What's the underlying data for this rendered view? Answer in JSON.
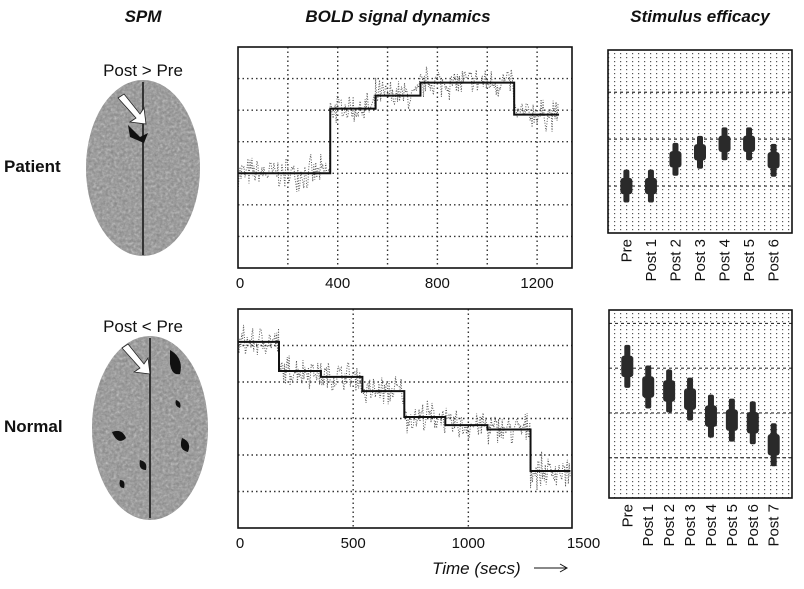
{
  "titles": {
    "spm": "SPM",
    "bold": "BOLD signal dynamics",
    "efficacy": "Stimulus efficacy"
  },
  "rows": [
    {
      "label": "Patient",
      "contrast": "Post > Pre"
    },
    {
      "label": "Normal",
      "contrast": "Post < Pre"
    }
  ],
  "xlabel": "Time (secs)",
  "colors": {
    "ink": "#111111",
    "grid": "#444444",
    "brain": "#8a8a8a",
    "bar": "#2a2a2a"
  },
  "chart_data": [
    {
      "id": "bold-patient",
      "type": "line",
      "title": "BOLD signal dynamics (Patient)",
      "xlabel": "Time (secs)",
      "ylabel": "",
      "xlim": [
        0,
        1340
      ],
      "ylim": [
        0,
        7
      ],
      "grid": true,
      "xticks": [
        0,
        400,
        800,
        1200
      ],
      "steps": [
        {
          "start": 0,
          "end": 370,
          "level": 3.0
        },
        {
          "start": 370,
          "end": 552,
          "level": 5.05
        },
        {
          "start": 552,
          "end": 732,
          "level": 5.46
        },
        {
          "start": 732,
          "end": 1108,
          "level": 5.87
        },
        {
          "start": 1108,
          "end": 1288,
          "level": 4.86
        }
      ]
    },
    {
      "id": "bold-normal",
      "type": "line",
      "title": "BOLD signal dynamics (Normal)",
      "xlabel": "Time (secs)",
      "ylabel": "",
      "xlim": [
        0,
        1450
      ],
      "ylim": [
        0,
        6
      ],
      "grid": true,
      "xticks": [
        0,
        500,
        1000,
        1500
      ],
      "steps": [
        {
          "start": 0,
          "end": 178,
          "level": 5.1
        },
        {
          "start": 178,
          "end": 360,
          "level": 4.3
        },
        {
          "start": 360,
          "end": 540,
          "level": 4.14
        },
        {
          "start": 540,
          "end": 722,
          "level": 3.75
        },
        {
          "start": 722,
          "end": 900,
          "level": 3.04
        },
        {
          "start": 900,
          "end": 1083,
          "level": 2.82
        },
        {
          "start": 1083,
          "end": 1270,
          "level": 2.7
        },
        {
          "start": 1270,
          "end": 1443,
          "level": 1.56
        }
      ]
    },
    {
      "id": "efficacy-patient",
      "type": "scatter",
      "title": "Stimulus efficacy (Patient)",
      "ylim": [
        0,
        3.9
      ],
      "grid": true,
      "categories": [
        "Pre",
        "Post 1",
        "Post 2",
        "Post 3",
        "Post 4",
        "Post 5",
        "Post 6"
      ],
      "values": [
        1.0,
        1.0,
        1.57,
        1.72,
        1.9,
        1.9,
        1.55
      ],
      "errors": [
        0.35,
        0.35,
        0.35,
        0.35,
        0.35,
        0.35,
        0.35
      ]
    },
    {
      "id": "efficacy-normal",
      "type": "scatter",
      "title": "Stimulus efficacy (Normal)",
      "ylim": [
        0.1,
        4.3
      ],
      "grid": true,
      "categories": [
        "Pre",
        "Post 1",
        "Post 2",
        "Post 3",
        "Post 4",
        "Post 5",
        "Post 6",
        "Post 7"
      ],
      "values": [
        3.04,
        2.58,
        2.49,
        2.31,
        1.93,
        1.84,
        1.78,
        1.29
      ],
      "errors": [
        0.48,
        0.48,
        0.48,
        0.48,
        0.48,
        0.48,
        0.48,
        0.48
      ]
    }
  ]
}
